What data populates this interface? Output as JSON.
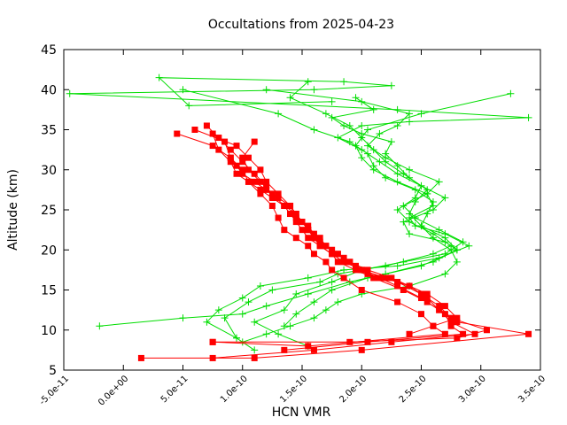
{
  "chart_data": {
    "type": "scatter",
    "title": "Occultations from 2025-04-23",
    "xlabel": "HCN VMR",
    "ylabel": "Altitude (km)",
    "xlim": [
      -5e-11,
      3.5e-10
    ],
    "ylim": [
      5,
      45
    ],
    "x_ticks": [
      -5e-11,
      0,
      5e-11,
      1e-10,
      1.5e-10,
      2e-10,
      2.5e-10,
      3e-10,
      3.5e-10
    ],
    "x_tick_labels": [
      "-5.0e-11",
      "0.0e+00",
      "5.0e-11",
      "1.0e-10",
      "1.5e-10",
      "2.0e-10",
      "2.5e-10",
      "3.0e-10",
      "3.5e-10"
    ],
    "y_ticks": [
      5,
      10,
      15,
      20,
      25,
      30,
      35,
      40,
      45
    ],
    "y_tick_labels": [
      "5",
      "10",
      "15",
      "20",
      "25",
      "30",
      "35",
      "40",
      "45"
    ],
    "grid": false,
    "legend": "none",
    "series": [
      {
        "color": "#00dd00",
        "marker": "plus",
        "profiles": [
          {
            "x": [
              1e-10,
              1.2e-10,
              1.4e-10,
              1.6e-10,
              1.7e-10,
              1.8e-10,
              2e-10,
              2.4e-10,
              2.7e-10,
              2.8e-10,
              2.75e-10,
              2.6e-10,
              2.5e-10,
              2.55e-10,
              2.6e-10,
              2.45e-10,
              2.2e-10,
              2.1e-10,
              2.05e-10,
              1.9e-10,
              1.6e-10,
              1.3e-10,
              5e-11
            ],
            "y": [
              8.5,
              9.5,
              10.5,
              11.5,
              12.5,
              13.5,
              14.5,
              15.5,
              17.0,
              18.5,
              20.0,
              21.5,
              23.0,
              24.5,
              26.0,
              27.5,
              29.0,
              30.5,
              32.0,
              33.5,
              35.0,
              37.0,
              40.0
            ]
          },
          {
            "x": [
              1.1e-10,
              9.5e-11,
              8.5e-11,
              1.05e-10,
              1.25e-10,
              1.65e-10,
              1.8e-10,
              2.2e-10,
              2.6e-10,
              2.75e-10,
              2.6e-10,
              2.4e-10,
              2.3e-10,
              2.45e-10,
              2.5e-10,
              2.35e-10,
              2.2e-10,
              2.1e-10,
              2e-10,
              1.9e-10,
              1.7e-10,
              1.4e-10,
              1.55e-10
            ],
            "y": [
              7.5,
              9.0,
              11.5,
              13.5,
              15.0,
              16.0,
              17.0,
              18.0,
              19.5,
              20.5,
              22.0,
              23.5,
              25.0,
              26.5,
              28.0,
              29.5,
              31.0,
              32.5,
              34.0,
              35.5,
              37.0,
              39.0,
              41.0
            ]
          },
          {
            "x": [
              9.5e-11,
              7e-11,
              8e-11,
              1e-10,
              1.15e-10,
              1.55e-10,
              1.85e-10,
              2.3e-10,
              2.65e-10,
              2.9e-10,
              2.7e-10,
              2.45e-10,
              2.4e-10,
              2.6e-10,
              2.55e-10,
              2.3e-10,
              2.1e-10,
              2e-10,
              1.95e-10,
              2.05e-10,
              2.5e-10,
              3.25e-10
            ],
            "y": [
              9.0,
              11.0,
              12.5,
              14.0,
              15.5,
              16.5,
              17.5,
              18.0,
              19.0,
              20.5,
              22.0,
              23.0,
              24.0,
              25.5,
              27.0,
              28.5,
              30.0,
              31.5,
              33.0,
              35.0,
              37.0,
              39.5
            ]
          },
          {
            "x": [
              1.35e-10,
              1.45e-10,
              1.6e-10,
              1.75e-10,
              2.05e-10,
              2.5e-10,
              2.8e-10,
              2.7e-10,
              2.4e-10,
              2.35e-10,
              2.6e-10,
              2.7e-10,
              2.5e-10,
              2.3e-10,
              2.15e-10,
              2e-10,
              1.8e-10,
              2e-10,
              2.4e-10,
              3.4e-10,
              2.3e-10,
              -4.5e-11,
              1.6e-10,
              2.25e-10,
              1.85e-10,
              3e-11,
              5.5e-11,
              1.75e-10
            ],
            "y": [
              10.5,
              12.0,
              13.5,
              15.0,
              16.5,
              18.0,
              20.0,
              21.0,
              22.0,
              23.5,
              25.0,
              26.5,
              28.0,
              29.5,
              31.0,
              32.5,
              34.0,
              35.5,
              36.0,
              36.5,
              37.5,
              39.5,
              40.0,
              40.5,
              41.0,
              41.5,
              38.0,
              38.5
            ]
          },
          {
            "x": [
              1.55e-10,
              1.3e-10,
              1.1e-10,
              1.35e-10,
              1.45e-10,
              1.75e-10,
              2e-10,
              2.35e-10,
              2.7e-10,
              2.85e-10,
              2.65e-10,
              2.45e-10,
              2.35e-10,
              2.55e-10,
              2.65e-10,
              2.4e-10,
              2.2e-10,
              2.05e-10,
              2.15e-10,
              2.3e-10,
              2.4e-10,
              2e-10,
              1.2e-10
            ],
            "y": [
              8.0,
              9.5,
              11.0,
              12.5,
              14.5,
              16.0,
              17.5,
              18.5,
              19.5,
              21.0,
              22.5,
              24.0,
              25.5,
              27.0,
              28.5,
              30.0,
              31.5,
              33.0,
              34.5,
              35.5,
              37.0,
              38.5,
              40.0
            ]
          },
          {
            "x": [
              -2e-11,
              5e-11,
              1e-10,
              1.2e-10,
              1.55e-10,
              1.9e-10,
              2.2e-10,
              2.6e-10,
              2.8e-10,
              2.7e-10,
              2.5e-10,
              2.4e-10,
              2.45e-10,
              2.55e-10,
              2.4e-10,
              2.3e-10,
              2.2e-10,
              2.25e-10,
              2e-10,
              1.85e-10,
              1.75e-10,
              2.1e-10,
              1.95e-10
            ],
            "y": [
              10.5,
              11.5,
              12.0,
              13.0,
              14.5,
              16.0,
              17.0,
              18.5,
              20.0,
              21.5,
              23.0,
              24.5,
              26.0,
              27.5,
              29.0,
              30.5,
              32.0,
              33.5,
              34.5,
              35.5,
              36.5,
              37.5,
              39.0
            ]
          }
        ]
      },
      {
        "color": "#ff0000",
        "marker": "square",
        "profiles": [
          {
            "x": [
              1.5e-11,
              1.1e-10,
              2e-10,
              3.4e-10,
              2.8e-10,
              2.65e-10,
              2.55e-10,
              2.4e-10,
              2.2e-10,
              2e-10,
              1.9e-10,
              1.8e-10,
              1.7e-10,
              1.6e-10,
              1.55e-10,
              1.5e-10,
              1.45e-10,
              1.4e-10,
              1.3e-10,
              1.2e-10,
              1.1e-10,
              1e-10,
              9.5e-11,
              9e-11,
              8.5e-11
            ],
            "y": [
              6.5,
              6.5,
              7.5,
              9.5,
              11.0,
              12.5,
              14.0,
              15.5,
              16.5,
              17.5,
              18.5,
              19.5,
              20.5,
              21.5,
              22.5,
              23.5,
              24.5,
              25.5,
              26.5,
              27.5,
              28.5,
              29.5,
              30.5,
              31.5,
              33.5
            ]
          },
          {
            "x": [
              1.35e-10,
              2.05e-10,
              2.85e-10,
              2.75e-10,
              2.7e-10,
              2.55e-10,
              2.35e-10,
              2.1e-10,
              1.95e-10,
              1.8e-10,
              1.75e-10,
              1.65e-10,
              1.55e-10,
              1.5e-10,
              1.45e-10,
              1.4e-10,
              1.35e-10,
              1.25e-10,
              1.15e-10,
              1.05e-10,
              9.5e-11,
              9e-11,
              8e-11,
              7.5e-11
            ],
            "y": [
              7.5,
              8.5,
              9.5,
              10.5,
              12.0,
              13.5,
              15.0,
              16.5,
              17.5,
              18.5,
              19.5,
              20.5,
              21.5,
              22.5,
              23.5,
              24.5,
              25.5,
              26.5,
              27.5,
              28.5,
              29.5,
              31.0,
              32.5,
              34.5
            ]
          },
          {
            "x": [
              7.5e-11,
              1.6e-10,
              2.25e-10,
              2.95e-10,
              2.75e-10,
              2.65e-10,
              2.5e-10,
              2.3e-10,
              2.15e-10,
              2e-10,
              1.85e-10,
              1.75e-10,
              1.65e-10,
              1.6e-10,
              1.55e-10,
              1.5e-10,
              1.45e-10,
              1.35e-10,
              1.25e-10,
              1.15e-10,
              1.05e-10,
              1e-10,
              1.1e-10
            ],
            "y": [
              6.5,
              7.5,
              8.5,
              9.5,
              11.0,
              12.5,
              14.0,
              15.5,
              16.5,
              17.5,
              18.5,
              19.5,
              20.5,
              21.5,
              22.5,
              23.5,
              24.5,
              25.5,
              27.0,
              28.5,
              30.0,
              31.5,
              33.5
            ]
          },
          {
            "x": [
              7.5e-11,
              1.9e-10,
              2.8e-10,
              3.05e-10,
              2.75e-10,
              2.65e-10,
              2.5e-10,
              2.3e-10,
              2.05e-10,
              1.95e-10,
              1.85e-10,
              1.75e-10,
              1.65e-10,
              1.6e-10,
              1.55e-10,
              1.45e-10,
              1.4e-10,
              1.3e-10,
              1.2e-10,
              1.15e-10,
              1.05e-10,
              9.5e-11,
              6e-11
            ],
            "y": [
              8.5,
              8.5,
              9.0,
              10.0,
              11.5,
              13.0,
              14.5,
              16.0,
              17.0,
              18.0,
              19.0,
              20.0,
              21.0,
              22.0,
              23.0,
              24.0,
              25.5,
              27.0,
              28.5,
              30.0,
              31.5,
              33.0,
              35.0
            ]
          },
          {
            "x": [
              2.4e-10,
              2.6e-10,
              2.8e-10,
              2.7e-10,
              2.55e-10,
              2.4e-10,
              2.25e-10,
              2.05e-10,
              1.9e-10,
              1.8e-10,
              1.7e-10,
              1.65e-10,
              1.55e-10,
              1.5e-10,
              1.4e-10,
              1.35e-10,
              1.25e-10,
              1.2e-10,
              1.1e-10,
              1e-10,
              9e-11,
              8e-11,
              7e-11
            ],
            "y": [
              9.5,
              10.5,
              11.5,
              13.0,
              14.5,
              15.5,
              16.5,
              17.5,
              18.5,
              19.5,
              20.5,
              21.5,
              22.5,
              23.5,
              24.5,
              25.5,
              26.5,
              28.0,
              29.5,
              31.0,
              32.5,
              34.0,
              35.5
            ]
          },
          {
            "x": [
              7.5e-11,
              1.55e-10,
              2.7e-10,
              2.6e-10,
              2.5e-10,
              2.3e-10,
              2e-10,
              1.85e-10,
              1.75e-10,
              1.7e-10,
              1.6e-10,
              1.55e-10,
              1.45e-10,
              1.35e-10,
              1.3e-10,
              1.25e-10,
              1.15e-10,
              1.05e-10,
              1e-10,
              9e-11,
              7.5e-11,
              4.5e-11
            ],
            "y": [
              8.5,
              8.0,
              9.5,
              10.5,
              12.0,
              13.5,
              15.0,
              16.5,
              17.5,
              18.5,
              19.5,
              20.5,
              21.5,
              22.5,
              24.0,
              25.5,
              27.0,
              28.5,
              30.0,
              31.5,
              33.0,
              34.5
            ]
          }
        ]
      }
    ]
  }
}
